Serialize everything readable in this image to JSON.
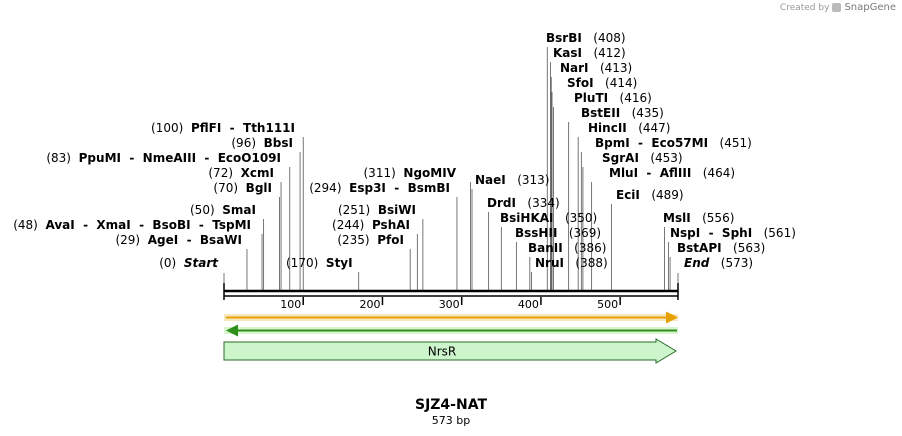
{
  "credit": {
    "prefix": "Created by",
    "brand": "SnapGene"
  },
  "title": "SJZ4-NAT",
  "length_label": "573 bp",
  "sequence_length": 573,
  "ruler_ticks": [
    "100",
    "200",
    "300",
    "400",
    "500"
  ],
  "colors": {
    "feature_top_arrow": "#e8a000",
    "feature_top_fill": "#f7e7bf",
    "feature_bottom_arrow": "#2f8f1c",
    "feature_bottom_fill": "#d8f5d0",
    "nrsr_fill": "#ccf5cc",
    "nrsr_stroke": "#2a6a2a"
  },
  "features": [
    {
      "name": "NrsR",
      "start": 0,
      "end": 573,
      "direction": "forward"
    }
  ],
  "sites": [
    {
      "pos": 0,
      "label": "Start",
      "kind": "start"
    },
    {
      "pos": 29,
      "label": "AgeI  -  BsaWI"
    },
    {
      "pos": 48,
      "label": "AvaI  -  XmaI  -  BsoBI  -  TspMI"
    },
    {
      "pos": 50,
      "label": "SmaI"
    },
    {
      "pos": 70,
      "label": "BglI"
    },
    {
      "pos": 72,
      "label": "XcmI"
    },
    {
      "pos": 83,
      "label": "PpuMI  -  NmeAIII  -  EcoO109I"
    },
    {
      "pos": 96,
      "label": "BbsI"
    },
    {
      "pos": 100,
      "label": "PflFI  -  Tth111I"
    },
    {
      "pos": 170,
      "label": "StyI"
    },
    {
      "pos": 235,
      "label": "PfoI"
    },
    {
      "pos": 244,
      "label": "PshAI"
    },
    {
      "pos": 251,
      "label": "BsiWI"
    },
    {
      "pos": 294,
      "label": "Esp3I  -  BsmBI"
    },
    {
      "pos": 311,
      "label": "NgoMIV"
    },
    {
      "pos": 313,
      "label": "NaeI"
    },
    {
      "pos": 334,
      "label": "DrdI"
    },
    {
      "pos": 350,
      "label": "BsiHKAI"
    },
    {
      "pos": 369,
      "label": "BssHII"
    },
    {
      "pos": 386,
      "label": "BanII"
    },
    {
      "pos": 388,
      "label": "NruI"
    },
    {
      "pos": 408,
      "label": "BsrBI"
    },
    {
      "pos": 412,
      "label": "KasI"
    },
    {
      "pos": 413,
      "label": "NarI"
    },
    {
      "pos": 414,
      "label": "SfoI"
    },
    {
      "pos": 416,
      "label": "PluTI"
    },
    {
      "pos": 435,
      "label": "BstEII"
    },
    {
      "pos": 447,
      "label": "HincII"
    },
    {
      "pos": 451,
      "label": "BpmI  -  Eco57MI"
    },
    {
      "pos": 453,
      "label": "SgrAI"
    },
    {
      "pos": 464,
      "label": "MluI  -  AflIII"
    },
    {
      "pos": 489,
      "label": "EciI"
    },
    {
      "pos": 556,
      "label": "MslI"
    },
    {
      "pos": 561,
      "label": "NspI  -  SphI"
    },
    {
      "pos": 563,
      "label": "BstAPI"
    },
    {
      "pos": 573,
      "label": "End",
      "kind": "end"
    }
  ]
}
